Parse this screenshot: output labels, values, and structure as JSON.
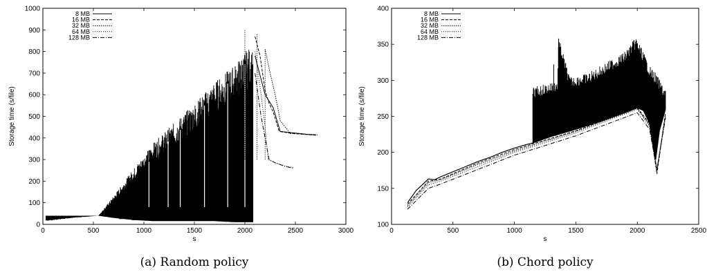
{
  "chart_data": [
    {
      "type": "line",
      "caption": "(a) Random policy",
      "xlabel": "s",
      "ylabel": "Storage time (s/file)",
      "xlim": [
        0,
        3000
      ],
      "ylim": [
        0,
        1000
      ],
      "xticks": [
        0,
        500,
        1000,
        1500,
        2000,
        2500,
        3000
      ],
      "yticks": [
        0,
        100,
        200,
        300,
        400,
        500,
        600,
        700,
        800,
        900,
        1000
      ],
      "grid": false,
      "legend_position": "top-left",
      "series": [
        {
          "name": "8 MB",
          "dash": "solid",
          "envelope_upper": [
            [
              30,
              15
            ],
            [
              300,
              30
            ],
            [
              550,
              40
            ],
            [
              700,
              130
            ],
            [
              900,
              260
            ],
            [
              1100,
              380
            ],
            [
              1300,
              470
            ],
            [
              1500,
              560
            ],
            [
              1700,
              660
            ],
            [
              1900,
              740
            ],
            [
              2000,
              800
            ],
            [
              2050,
              820
            ],
            [
              2100,
              780
            ]
          ],
          "envelope_lower": [
            [
              550,
              40
            ],
            [
              700,
              30
            ],
            [
              900,
              20
            ],
            [
              1100,
              15
            ],
            [
              1300,
              15
            ],
            [
              1500,
              15
            ],
            [
              1700,
              15
            ],
            [
              1900,
              10
            ],
            [
              2050,
              10
            ]
          ],
          "tail": [
            [
              2100,
              780
            ],
            [
              2150,
              690
            ],
            [
              2200,
              600
            ],
            [
              2280,
              540
            ],
            [
              2350,
              430
            ],
            [
              2450,
              425
            ],
            [
              2550,
              420
            ],
            [
              2650,
              415
            ],
            [
              2700,
              415
            ]
          ]
        },
        {
          "name": "16 MB",
          "dash": "dashed",
          "tail": [
            [
              2100,
              870
            ],
            [
              2150,
              780
            ],
            [
              2200,
              620
            ],
            [
              2240,
              560
            ],
            [
              2280,
              520
            ],
            [
              2340,
              430
            ],
            [
              2450,
              422
            ],
            [
              2550,
              418
            ],
            [
              2720,
              412
            ]
          ]
        },
        {
          "name": "32 MB",
          "dash": "dotted-fine",
          "peaks": [
            [
              2000,
              900
            ],
            [
              2120,
              880
            ],
            [
              2200,
              810
            ]
          ],
          "tail": [
            [
              2200,
              810
            ],
            [
              2250,
              700
            ],
            [
              2300,
              600
            ],
            [
              2350,
              480
            ],
            [
              2450,
              420
            ],
            [
              2720,
              415
            ]
          ]
        },
        {
          "name": "64 MB",
          "dash": "dotted",
          "tail": [
            [
              2100,
              800
            ],
            [
              2160,
              600
            ],
            [
              2200,
              450
            ],
            [
              2230,
              300
            ],
            [
              2300,
              285
            ],
            [
              2400,
              270
            ],
            [
              2480,
              262
            ]
          ]
        },
        {
          "name": "128 MB",
          "dash": "dash-dot",
          "tail": [
            [
              2100,
              700
            ],
            [
              2160,
              500
            ],
            [
              2200,
              400
            ],
            [
              2240,
              300
            ],
            [
              2300,
              285
            ],
            [
              2400,
              268
            ],
            [
              2480,
              260
            ]
          ]
        }
      ]
    },
    {
      "type": "line",
      "caption": "(b) Chord policy",
      "xlabel": "s",
      "ylabel": "Storage time (s/file)",
      "xlim": [
        0,
        2500
      ],
      "ylim": [
        100,
        400
      ],
      "xticks": [
        0,
        500,
        1000,
        1500,
        2000,
        2500
      ],
      "yticks": [
        100,
        150,
        200,
        250,
        300,
        350,
        400
      ],
      "grid": false,
      "legend_position": "top-left",
      "series": [
        {
          "name": "8 MB",
          "dash": "solid",
          "values": [
            [
              130,
              130
            ],
            [
              200,
              147
            ],
            [
              300,
              163
            ],
            [
              350,
              162
            ],
            [
              400,
              166
            ],
            [
              500,
              173
            ],
            [
              600,
              180
            ],
            [
              700,
              187
            ],
            [
              800,
              193
            ],
            [
              900,
              200
            ],
            [
              1000,
              206
            ],
            [
              1100,
              211
            ],
            [
              1150,
              213
            ],
            [
              1300,
              222
            ],
            [
              1500,
              232
            ],
            [
              1700,
              243
            ],
            [
              1900,
              255
            ],
            [
              2000,
              262
            ],
            [
              2050,
              258
            ],
            [
              2100,
              240
            ],
            [
              2150,
              190
            ],
            [
              2180,
              230
            ],
            [
              2230,
              260
            ]
          ],
          "spikes_upper": [
            [
              1150,
              290
            ],
            [
              1250,
              295
            ],
            [
              1350,
              300
            ],
            [
              1360,
              360
            ],
            [
              1450,
              305
            ],
            [
              1600,
              310
            ],
            [
              1700,
              320
            ],
            [
              1800,
              330
            ],
            [
              1900,
              340
            ],
            [
              1990,
              360
            ],
            [
              2050,
              340
            ],
            [
              2100,
              320
            ],
            [
              2150,
              310
            ],
            [
              2220,
              290
            ]
          ]
        },
        {
          "name": "16 MB",
          "dash": "dashed",
          "values": [
            [
              130,
              128
            ],
            [
              300,
              160
            ],
            [
              400,
              163
            ],
            [
              700,
              185
            ],
            [
              1000,
              204
            ],
            [
              1500,
              230
            ],
            [
              2000,
              262
            ],
            [
              2100,
              240
            ],
            [
              2160,
              170
            ],
            [
              2230,
              255
            ]
          ]
        },
        {
          "name": "32 MB",
          "dash": "dotted-fine",
          "values": [
            [
              130,
              126
            ],
            [
              300,
              158
            ],
            [
              400,
              162
            ],
            [
              700,
              183
            ],
            [
              1000,
              202
            ],
            [
              1500,
              229
            ],
            [
              2000,
              261
            ],
            [
              2100,
              238
            ],
            [
              2160,
              175
            ],
            [
              2230,
              252
            ]
          ]
        },
        {
          "name": "64 MB",
          "dash": "dotted",
          "values": [
            [
              130,
              124
            ],
            [
              300,
              155
            ],
            [
              400,
              160
            ],
            [
              700,
              180
            ],
            [
              1000,
              200
            ],
            [
              1500,
              227
            ],
            [
              2000,
              260
            ],
            [
              2100,
              236
            ],
            [
              2160,
              178
            ],
            [
              2230,
              250
            ]
          ]
        },
        {
          "name": "128 MB",
          "dash": "dash-dot",
          "values": [
            [
              130,
              121
            ],
            [
              300,
              150
            ],
            [
              400,
              156
            ],
            [
              700,
              176
            ],
            [
              1000,
              196
            ],
            [
              1500,
              223
            ],
            [
              2000,
              255
            ],
            [
              2100,
              232
            ],
            [
              2160,
              175
            ],
            [
              2230,
              248
            ]
          ]
        }
      ]
    }
  ]
}
